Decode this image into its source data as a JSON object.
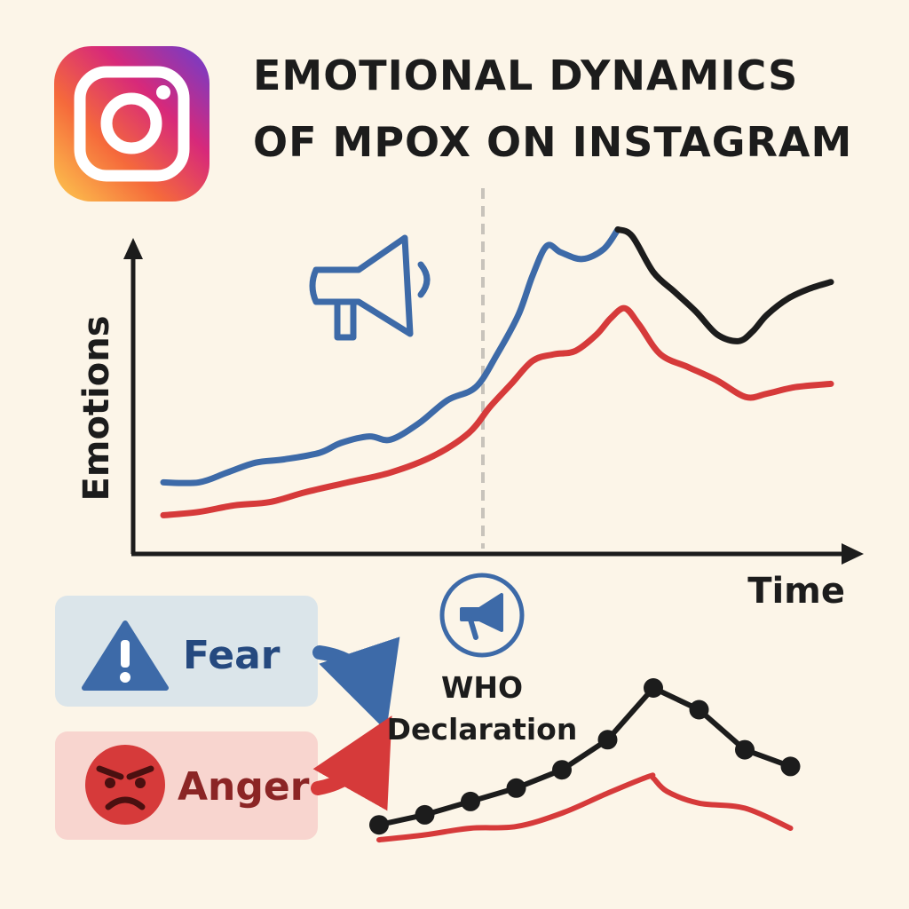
{
  "title": {
    "line1": "EMOTIONAL DYNAMICS",
    "line2": "OF MPOX ON INSTAGRAM"
  },
  "logo": {
    "icon": "instagram-logo-icon"
  },
  "colors": {
    "background": "#fcf5e8",
    "fear": "#3d6aa8",
    "anger": "#d63a3a",
    "post_peak": "#1c1c1c",
    "declaration_line": "#c8c3bb",
    "fear_box": "#dbe5ea",
    "anger_box": "#f8d5cf"
  },
  "legend": {
    "fear": {
      "label": "Fear",
      "icon": "warning-triangle-icon"
    },
    "anger": {
      "label": "Anger",
      "icon": "angry-face-icon"
    }
  },
  "annotation": {
    "line1": "WHO",
    "line2": "Declaration",
    "icon": "megaphone-icon"
  },
  "chart_data": [
    {
      "type": "line",
      "title": "",
      "xlabel": "Time",
      "ylabel": "Emotions",
      "xlim": [
        0,
        100
      ],
      "ylim": [
        0,
        100
      ],
      "grid": false,
      "ticks": false,
      "annotation_x": 48,
      "annotation_icon": "megaphone-icon",
      "series": [
        {
          "name": "Fear",
          "color": "#3d6aa8",
          "post_color": "#1c1c1c",
          "post_from_x": 67,
          "x": [
            3,
            8,
            12,
            16,
            20,
            25,
            28,
            32,
            35,
            39,
            43,
            47,
            50,
            53,
            55,
            57,
            59,
            62,
            65,
            67,
            69,
            72,
            75,
            78,
            81,
            84,
            86,
            88,
            91,
            94,
            97
          ],
          "y": [
            18,
            18,
            21,
            24,
            25,
            27,
            30,
            32,
            31,
            36,
            43,
            47,
            57,
            69,
            81,
            90,
            88,
            86,
            89,
            95,
            93,
            82,
            76,
            70,
            63,
            61,
            64,
            69,
            74,
            77,
            79
          ]
        },
        {
          "name": "Anger",
          "color": "#d63a3a",
          "x": [
            3,
            8,
            13,
            18,
            23,
            29,
            35,
            41,
            46,
            49,
            52,
            55,
            58,
            61,
            64,
            66,
            68,
            70,
            73,
            77,
            81,
            85,
            88,
            92,
            97
          ],
          "y": [
            8,
            9,
            11,
            12,
            15,
            18,
            21,
            26,
            33,
            41,
            48,
            55,
            57,
            58,
            63,
            68,
            71,
            66,
            57,
            53,
            49,
            44,
            45,
            47,
            48
          ]
        }
      ]
    },
    {
      "type": "line",
      "title": "",
      "xlabel": "",
      "ylabel": "",
      "axes": false,
      "xlim": [
        0,
        10
      ],
      "ylim": [
        0,
        10
      ],
      "series": [
        {
          "name": "",
          "color": "#1c1c1c",
          "markers": true,
          "x": [
            0,
            1,
            2,
            3,
            4,
            5,
            6,
            7,
            8,
            9
          ],
          "y": [
            1.0,
            1.6,
            2.4,
            3.2,
            4.3,
            6.1,
            9.2,
            7.9,
            5.5,
            4.5
          ]
        },
        {
          "name": "",
          "color": "#d63a3a",
          "markers": false,
          "x": [
            0,
            1,
            2,
            3,
            4,
            5,
            5.9,
            6,
            6.3,
            7,
            8,
            9
          ],
          "y": [
            0.1,
            0.4,
            0.8,
            0.9,
            1.7,
            2.9,
            3.9,
            3.8,
            3.0,
            2.3,
            2.0,
            0.8
          ]
        }
      ]
    }
  ]
}
